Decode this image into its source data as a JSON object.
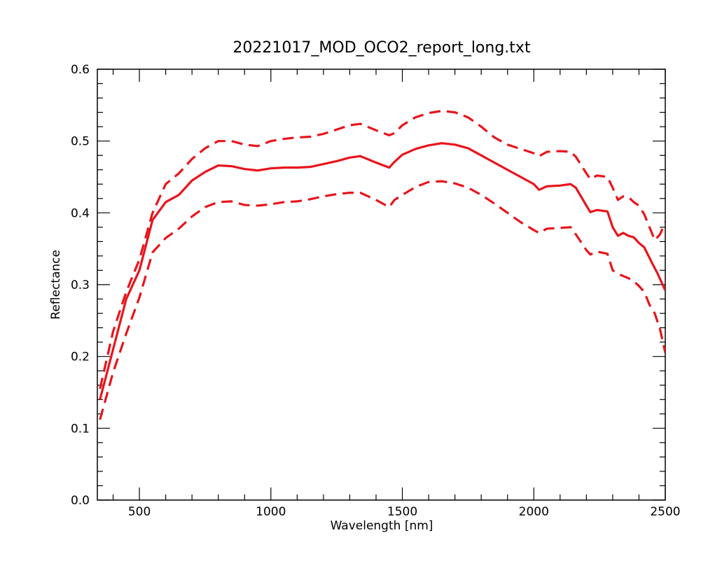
{
  "chart_data": {
    "type": "line",
    "title": "20221017_MOD_OCO2_report_long.txt",
    "xlabel": "Wavelength [nm]",
    "ylabel": "Reflectance",
    "xlim": [
      340,
      2500
    ],
    "ylim": [
      0.0,
      0.6
    ],
    "x_ticks": [
      500,
      1000,
      1500,
      2000,
      2500
    ],
    "y_ticks": [
      0.0,
      0.1,
      0.2,
      0.3,
      0.4,
      0.5,
      0.6
    ],
    "grid": false,
    "series_color": "#e8141c",
    "series": [
      {
        "style": "solid",
        "points": [
          [
            350,
            0.14
          ],
          [
            400,
            0.21
          ],
          [
            450,
            0.28
          ],
          [
            500,
            0.32
          ],
          [
            550,
            0.39
          ],
          [
            600,
            0.415
          ],
          [
            650,
            0.425
          ],
          [
            700,
            0.445
          ],
          [
            750,
            0.457
          ],
          [
            800,
            0.466
          ],
          [
            850,
            0.465
          ],
          [
            900,
            0.461
          ],
          [
            950,
            0.459
          ],
          [
            1000,
            0.462
          ],
          [
            1050,
            0.463
          ],
          [
            1100,
            0.463
          ],
          [
            1150,
            0.464
          ],
          [
            1200,
            0.468
          ],
          [
            1250,
            0.472
          ],
          [
            1300,
            0.477
          ],
          [
            1340,
            0.479
          ],
          [
            1400,
            0.47
          ],
          [
            1450,
            0.463
          ],
          [
            1470,
            0.471
          ],
          [
            1500,
            0.481
          ],
          [
            1550,
            0.489
          ],
          [
            1600,
            0.494
          ],
          [
            1650,
            0.497
          ],
          [
            1700,
            0.495
          ],
          [
            1750,
            0.49
          ],
          [
            1800,
            0.48
          ],
          [
            1850,
            0.47
          ],
          [
            1900,
            0.46
          ],
          [
            1950,
            0.45
          ],
          [
            2000,
            0.44
          ],
          [
            2020,
            0.432
          ],
          [
            2050,
            0.437
          ],
          [
            2100,
            0.438
          ],
          [
            2140,
            0.44
          ],
          [
            2160,
            0.435
          ],
          [
            2200,
            0.41
          ],
          [
            2215,
            0.401
          ],
          [
            2240,
            0.404
          ],
          [
            2280,
            0.402
          ],
          [
            2300,
            0.38
          ],
          [
            2320,
            0.368
          ],
          [
            2340,
            0.372
          ],
          [
            2360,
            0.368
          ],
          [
            2380,
            0.366
          ],
          [
            2400,
            0.358
          ],
          [
            2420,
            0.352
          ],
          [
            2450,
            0.33
          ],
          [
            2470,
            0.316
          ],
          [
            2500,
            0.292
          ]
        ]
      },
      {
        "style": "dashed",
        "points": [
          [
            350,
            0.155
          ],
          [
            400,
            0.235
          ],
          [
            450,
            0.29
          ],
          [
            500,
            0.335
          ],
          [
            550,
            0.4
          ],
          [
            600,
            0.44
          ],
          [
            650,
            0.455
          ],
          [
            700,
            0.475
          ],
          [
            750,
            0.49
          ],
          [
            800,
            0.5
          ],
          [
            850,
            0.5
          ],
          [
            900,
            0.495
          ],
          [
            950,
            0.493
          ],
          [
            1000,
            0.5
          ],
          [
            1050,
            0.503
          ],
          [
            1100,
            0.505
          ],
          [
            1150,
            0.506
          ],
          [
            1200,
            0.51
          ],
          [
            1250,
            0.516
          ],
          [
            1300,
            0.522
          ],
          [
            1340,
            0.524
          ],
          [
            1400,
            0.515
          ],
          [
            1450,
            0.508
          ],
          [
            1470,
            0.511
          ],
          [
            1500,
            0.522
          ],
          [
            1550,
            0.533
          ],
          [
            1600,
            0.539
          ],
          [
            1650,
            0.542
          ],
          [
            1700,
            0.54
          ],
          [
            1750,
            0.533
          ],
          [
            1800,
            0.52
          ],
          [
            1850,
            0.505
          ],
          [
            1900,
            0.495
          ],
          [
            1950,
            0.489
          ],
          [
            2000,
            0.483
          ],
          [
            2020,
            0.479
          ],
          [
            2050,
            0.485
          ],
          [
            2100,
            0.486
          ],
          [
            2140,
            0.485
          ],
          [
            2160,
            0.478
          ],
          [
            2200,
            0.455
          ],
          [
            2215,
            0.447
          ],
          [
            2240,
            0.452
          ],
          [
            2280,
            0.45
          ],
          [
            2300,
            0.435
          ],
          [
            2320,
            0.418
          ],
          [
            2340,
            0.423
          ],
          [
            2360,
            0.422
          ],
          [
            2380,
            0.415
          ],
          [
            2400,
            0.41
          ],
          [
            2420,
            0.398
          ],
          [
            2440,
            0.38
          ],
          [
            2460,
            0.362
          ],
          [
            2480,
            0.37
          ],
          [
            2500,
            0.387
          ]
        ]
      },
      {
        "style": "dashed",
        "points": [
          [
            350,
            0.112
          ],
          [
            400,
            0.178
          ],
          [
            450,
            0.232
          ],
          [
            500,
            0.282
          ],
          [
            550,
            0.345
          ],
          [
            600,
            0.365
          ],
          [
            650,
            0.378
          ],
          [
            700,
            0.395
          ],
          [
            750,
            0.408
          ],
          [
            800,
            0.415
          ],
          [
            850,
            0.416
          ],
          [
            900,
            0.411
          ],
          [
            950,
            0.41
          ],
          [
            1000,
            0.412
          ],
          [
            1050,
            0.415
          ],
          [
            1100,
            0.416
          ],
          [
            1150,
            0.419
          ],
          [
            1200,
            0.423
          ],
          [
            1250,
            0.426
          ],
          [
            1300,
            0.428
          ],
          [
            1340,
            0.428
          ],
          [
            1400,
            0.418
          ],
          [
            1450,
            0.408
          ],
          [
            1470,
            0.418
          ],
          [
            1500,
            0.425
          ],
          [
            1550,
            0.436
          ],
          [
            1600,
            0.443
          ],
          [
            1650,
            0.444
          ],
          [
            1700,
            0.441
          ],
          [
            1750,
            0.435
          ],
          [
            1800,
            0.425
          ],
          [
            1850,
            0.413
          ],
          [
            1900,
            0.4
          ],
          [
            1950,
            0.387
          ],
          [
            2000,
            0.376
          ],
          [
            2020,
            0.372
          ],
          [
            2050,
            0.378
          ],
          [
            2100,
            0.379
          ],
          [
            2140,
            0.38
          ],
          [
            2160,
            0.37
          ],
          [
            2200,
            0.348
          ],
          [
            2215,
            0.342
          ],
          [
            2240,
            0.346
          ],
          [
            2280,
            0.343
          ],
          [
            2300,
            0.32
          ],
          [
            2320,
            0.315
          ],
          [
            2340,
            0.312
          ],
          [
            2360,
            0.309
          ],
          [
            2380,
            0.305
          ],
          [
            2400,
            0.298
          ],
          [
            2420,
            0.29
          ],
          [
            2440,
            0.272
          ],
          [
            2460,
            0.26
          ],
          [
            2480,
            0.238
          ],
          [
            2500,
            0.205
          ]
        ]
      }
    ]
  }
}
